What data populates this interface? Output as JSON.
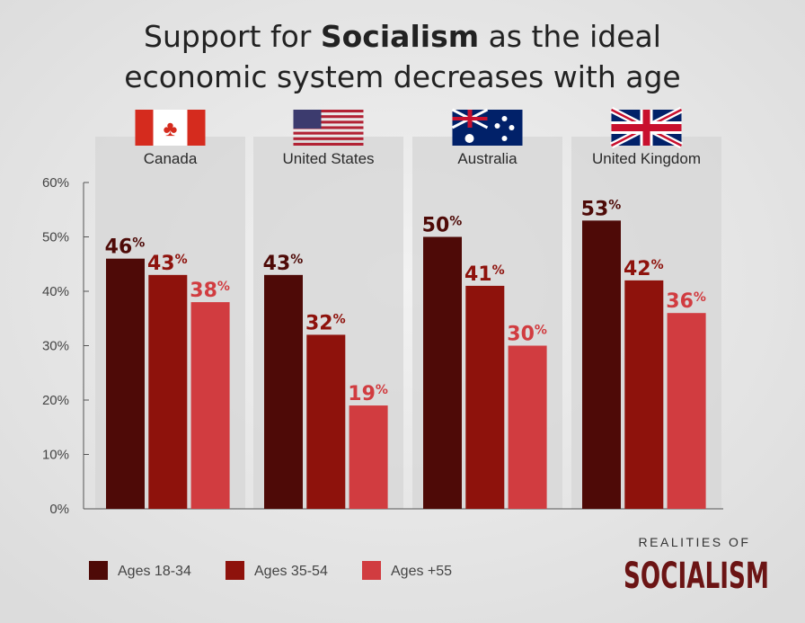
{
  "chart_data": {
    "type": "bar",
    "title_parts": [
      "Support for ",
      "Socialism",
      " as the ideal",
      "economic system decreases with age"
    ],
    "categories": [
      "Canada",
      "United States",
      "Australia",
      "United Kingdom"
    ],
    "series": [
      {
        "name": "Ages 18-34",
        "color": "#4e0a07",
        "values": [
          46,
          43,
          50,
          53
        ]
      },
      {
        "name": "Ages 35-54",
        "color": "#8e120c",
        "values": [
          43,
          32,
          41,
          42
        ]
      },
      {
        "name": "Ages +55",
        "color": "#d13c40",
        "values": [
          38,
          19,
          30,
          36
        ]
      }
    ],
    "value_labels": [
      [
        "46%",
        "43%",
        "38%"
      ],
      [
        "43%",
        "32%",
        "19%"
      ],
      [
        "50%",
        "41%",
        "30%"
      ],
      [
        "53%",
        "42%",
        "36%"
      ]
    ],
    "yticks": [
      "0%",
      "10%",
      "20%",
      "30%",
      "40%",
      "50%",
      "60%"
    ],
    "ylim": [
      0,
      60
    ],
    "ylabel": "",
    "xlabel": "",
    "legend_position": "bottom-left",
    "grid": false
  },
  "branding": {
    "line1": "REALITIES OF",
    "line2": "SOCIALISM",
    "color": "#6b1414"
  }
}
